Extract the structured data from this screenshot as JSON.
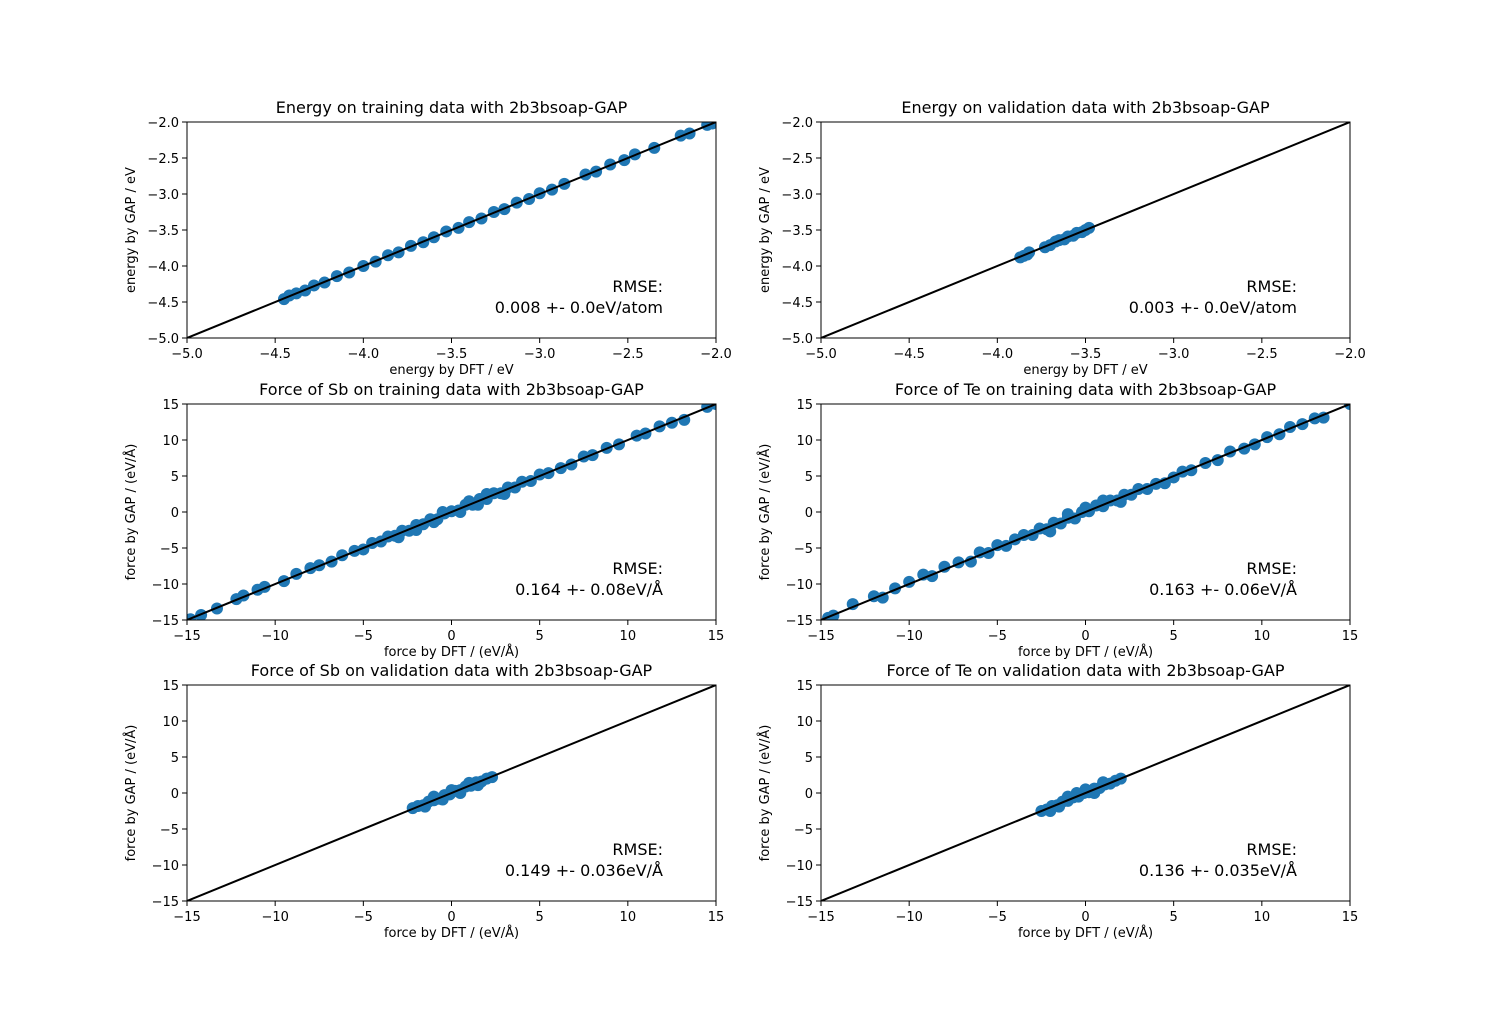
{
  "colors": {
    "points": "#1f77b4",
    "line": "#000000"
  },
  "chart_data": [
    {
      "type": "scatter",
      "title": "Energy on training data with 2b3bsoap-GAP",
      "xlabel": "energy by DFT / eV",
      "ylabel": "energy by GAP / eV",
      "xlim": [
        -5.0,
        -2.0
      ],
      "ylim": [
        -5.0,
        -2.0
      ],
      "xticks": [
        -5.0,
        -4.5,
        -4.0,
        -3.5,
        -3.0,
        -2.5,
        -2.0
      ],
      "yticks": [
        -5.0,
        -4.5,
        -4.0,
        -3.5,
        -3.0,
        -2.5,
        -2.0
      ],
      "xtick_labels": [
        "−5.0",
        "−4.5",
        "−4.0",
        "−3.5",
        "−3.0",
        "−2.5",
        "−2.0"
      ],
      "ytick_labels": [
        "−5.0",
        "−4.5",
        "−4.0",
        "−3.5",
        "−3.0",
        "−2.5",
        "−2.0"
      ],
      "rmse_label": "RMSE:",
      "rmse_value": "0.008 +- 0.0eV/atom",
      "identity_line": true,
      "points_x": [
        -4.45,
        -4.42,
        -4.38,
        -4.33,
        -4.28,
        -4.22,
        -4.15,
        -4.08,
        -4.0,
        -3.93,
        -3.86,
        -3.8,
        -3.73,
        -3.66,
        -3.6,
        -3.53,
        -3.46,
        -3.4,
        -3.33,
        -3.26,
        -3.2,
        -3.13,
        -3.06,
        -3.0,
        -2.93,
        -2.86,
        -2.74,
        -2.68,
        -2.6,
        -2.52,
        -2.46,
        -2.35,
        -2.2,
        -2.15,
        -2.05,
        -2.02
      ],
      "points_y": [
        -4.46,
        -4.41,
        -4.38,
        -4.34,
        -4.27,
        -4.23,
        -4.14,
        -4.09,
        -4.0,
        -3.94,
        -3.85,
        -3.81,
        -3.72,
        -3.67,
        -3.6,
        -3.52,
        -3.47,
        -3.39,
        -3.34,
        -3.25,
        -3.21,
        -3.12,
        -3.07,
        -2.99,
        -2.94,
        -2.86,
        -2.73,
        -2.69,
        -2.59,
        -2.53,
        -2.45,
        -2.36,
        -2.19,
        -2.16,
        -2.04,
        -2.02
      ]
    },
    {
      "type": "scatter",
      "title": "Energy on validation data with 2b3bsoap-GAP",
      "xlabel": "energy by DFT / eV",
      "ylabel": "energy by GAP / eV",
      "xlim": [
        -5.0,
        -2.0
      ],
      "ylim": [
        -5.0,
        -2.0
      ],
      "xticks": [
        -5.0,
        -4.5,
        -4.0,
        -3.5,
        -3.0,
        -2.5,
        -2.0
      ],
      "yticks": [
        -5.0,
        -4.5,
        -4.0,
        -3.5,
        -3.0,
        -2.5,
        -2.0
      ],
      "xtick_labels": [
        "−5.0",
        "−4.5",
        "−4.0",
        "−3.5",
        "−3.0",
        "−2.5",
        "−2.0"
      ],
      "ytick_labels": [
        "−5.0",
        "−4.5",
        "−4.0",
        "−3.5",
        "−3.0",
        "−2.5",
        "−2.0"
      ],
      "rmse_label": "RMSE:",
      "rmse_value": "0.003 +- 0.0eV/atom",
      "identity_line": true,
      "points_x": [
        -3.87,
        -3.85,
        -3.83,
        -3.82,
        -3.73,
        -3.7,
        -3.67,
        -3.65,
        -3.62,
        -3.6,
        -3.57,
        -3.55,
        -3.52,
        -3.5,
        -3.48
      ],
      "points_y": [
        -3.88,
        -3.86,
        -3.84,
        -3.81,
        -3.74,
        -3.71,
        -3.66,
        -3.64,
        -3.63,
        -3.59,
        -3.58,
        -3.54,
        -3.53,
        -3.5,
        -3.47
      ]
    },
    {
      "type": "scatter",
      "title": "Force of Sb on training data with 2b3bsoap-GAP",
      "xlabel": "force by DFT / (eV/Å)",
      "ylabel": "force by GAP / (eV/Å)",
      "xlim": [
        -15,
        15
      ],
      "ylim": [
        -15,
        15
      ],
      "xticks": [
        -15,
        -10,
        -5,
        0,
        5,
        10,
        15
      ],
      "yticks": [
        -15,
        -10,
        -5,
        0,
        5,
        10,
        15
      ],
      "xtick_labels": [
        "−15",
        "−10",
        "−5",
        "0",
        "5",
        "10",
        "15"
      ],
      "ytick_labels": [
        "−15",
        "−10",
        "−5",
        "0",
        "5",
        "10",
        "15"
      ],
      "rmse_label": "RMSE:",
      "rmse_value": "0.164 +- 0.08eV/Å",
      "identity_line": true,
      "points_x": [
        -14.8,
        -14.2,
        -13.3,
        -12.2,
        -11.8,
        -11.0,
        -10.6,
        -9.5,
        -8.8,
        -8.0,
        -7.5,
        -6.8,
        -6.2,
        -5.5,
        -5.0,
        -4.5,
        -4.0,
        -3.6,
        -3.2,
        -2.8,
        -2.4,
        -2.0,
        -1.6,
        -1.2,
        -0.8,
        -0.4,
        0.0,
        0.4,
        0.8,
        1.2,
        1.6,
        2.0,
        2.4,
        2.8,
        3.2,
        3.6,
        4.0,
        4.5,
        5.0,
        5.5,
        6.2,
        6.8,
        7.5,
        8.0,
        8.8,
        9.5,
        10.5,
        11.0,
        11.8,
        12.5,
        13.2,
        14.5,
        15.0,
        -3.0,
        -1.0,
        1.0,
        3.0,
        -2.0,
        2.0,
        0.5,
        -0.5,
        1.5
      ],
      "points_y": [
        -14.9,
        -14.3,
        -13.4,
        -12.1,
        -11.6,
        -10.8,
        -10.4,
        -9.6,
        -8.6,
        -7.8,
        -7.4,
        -6.9,
        -6.0,
        -5.4,
        -5.2,
        -4.3,
        -4.1,
        -3.4,
        -3.3,
        -2.6,
        -2.6,
        -1.8,
        -1.7,
        -1.0,
        -1.0,
        -0.2,
        0.1,
        0.2,
        1.0,
        1.0,
        1.8,
        1.8,
        2.6,
        2.6,
        3.4,
        3.4,
        4.2,
        4.3,
        5.2,
        5.4,
        6.1,
        6.6,
        7.7,
        7.9,
        8.9,
        9.4,
        10.6,
        10.9,
        11.9,
        12.4,
        12.8,
        14.6,
        15.0,
        -3.5,
        -1.4,
        1.5,
        2.5,
        -2.5,
        2.5,
        0.0,
        0.0,
        1.0
      ]
    },
    {
      "type": "scatter",
      "title": "Force of Te on training data with 2b3bsoap-GAP",
      "xlabel": "force by DFT / (eV/Å)",
      "ylabel": "force by GAP / (eV/Å)",
      "xlim": [
        -15,
        15
      ],
      "ylim": [
        -15,
        15
      ],
      "xticks": [
        -15,
        -10,
        -5,
        0,
        5,
        10,
        15
      ],
      "yticks": [
        -15,
        -10,
        -5,
        0,
        5,
        10,
        15
      ],
      "xtick_labels": [
        "−15",
        "−10",
        "−5",
        "0",
        "5",
        "10",
        "15"
      ],
      "ytick_labels": [
        "−15",
        "−10",
        "−5",
        "0",
        "5",
        "10",
        "15"
      ],
      "rmse_label": "RMSE:",
      "rmse_value": "0.163 +- 0.06eV/Å",
      "identity_line": true,
      "points_x": [
        -14.6,
        -14.3,
        -13.2,
        -12.0,
        -11.5,
        -10.8,
        -10.0,
        -9.2,
        -8.7,
        -8.0,
        -7.2,
        -6.5,
        -6.0,
        -5.5,
        -5.0,
        -4.5,
        -4.0,
        -3.5,
        -3.0,
        -2.6,
        -2.2,
        -1.8,
        -1.4,
        -1.0,
        -0.6,
        -0.2,
        0.2,
        0.6,
        1.0,
        1.4,
        1.8,
        2.2,
        2.6,
        3.0,
        3.5,
        4.0,
        4.5,
        5.0,
        5.5,
        6.0,
        6.8,
        7.5,
        8.2,
        9.0,
        9.6,
        10.3,
        11.0,
        11.6,
        12.3,
        13.0,
        13.5,
        15.0,
        -2.0,
        0.0,
        2.0,
        -1.0,
        1.0
      ],
      "points_y": [
        -14.7,
        -14.4,
        -12.8,
        -11.7,
        -11.9,
        -10.6,
        -9.7,
        -8.7,
        -8.9,
        -7.6,
        -7.0,
        -6.9,
        -5.6,
        -5.7,
        -4.6,
        -4.7,
        -3.8,
        -3.2,
        -3.2,
        -2.3,
        -2.4,
        -1.5,
        -1.6,
        -0.8,
        -0.9,
        0.0,
        0.1,
        0.9,
        0.8,
        1.6,
        1.6,
        2.4,
        2.4,
        3.2,
        3.2,
        3.9,
        4.0,
        4.8,
        5.6,
        5.8,
        6.8,
        7.2,
        8.4,
        8.8,
        9.4,
        10.4,
        10.8,
        11.8,
        12.2,
        13.0,
        13.1,
        15.0,
        -2.7,
        0.6,
        1.4,
        -0.3,
        1.6
      ]
    },
    {
      "type": "scatter",
      "title": "Force of Sb on validation data with 2b3bsoap-GAP",
      "xlabel": "force by DFT / (eV/Å)",
      "ylabel": "force by GAP / (eV/Å)",
      "xlim": [
        -15,
        15
      ],
      "ylim": [
        -15,
        15
      ],
      "xticks": [
        -15,
        -10,
        -5,
        0,
        5,
        10,
        15
      ],
      "yticks": [
        -15,
        -10,
        -5,
        0,
        5,
        10,
        15
      ],
      "xtick_labels": [
        "−15",
        "−10",
        "−5",
        "0",
        "5",
        "10",
        "15"
      ],
      "ytick_labels": [
        "−15",
        "−10",
        "−5",
        "0",
        "5",
        "10",
        "15"
      ],
      "rmse_label": "RMSE:",
      "rmse_value": "0.149 +- 0.036eV/Å",
      "identity_line": true,
      "points_x": [
        -2.2,
        -1.9,
        -1.6,
        -1.3,
        -1.0,
        -0.7,
        -0.4,
        -0.1,
        0.2,
        0.5,
        0.8,
        1.1,
        1.4,
        1.7,
        2.0,
        2.3,
        -1.5,
        -0.5,
        0.5,
        1.5,
        -1.0,
        0.0,
        1.0
      ],
      "points_y": [
        -2.1,
        -1.8,
        -1.7,
        -1.2,
        -1.0,
        -0.8,
        -0.3,
        -0.2,
        0.3,
        0.4,
        0.9,
        1.0,
        1.5,
        1.6,
        2.0,
        2.2,
        -1.9,
        -0.9,
        0.0,
        1.1,
        -0.5,
        0.4,
        1.4
      ]
    },
    {
      "type": "scatter",
      "title": "Force of Te on validation data with 2b3bsoap-GAP",
      "xlabel": "force by DFT / (eV/Å)",
      "ylabel": "force by GAP / (eV/Å)",
      "xlim": [
        -15,
        15
      ],
      "ylim": [
        -15,
        15
      ],
      "xticks": [
        -15,
        -10,
        -5,
        0,
        5,
        10,
        15
      ],
      "yticks": [
        -15,
        -10,
        -5,
        0,
        5,
        10,
        15
      ],
      "xtick_labels": [
        "−15",
        "−10",
        "−5",
        "0",
        "5",
        "10",
        "15"
      ],
      "ytick_labels": [
        "−15",
        "−10",
        "−5",
        "0",
        "5",
        "10",
        "15"
      ],
      "rmse_label": "RMSE:",
      "rmse_value": "0.136 +- 0.035eV/Å",
      "identity_line": true,
      "points_x": [
        -2.5,
        -2.2,
        -1.9,
        -1.6,
        -1.3,
        -1.0,
        -0.7,
        -0.4,
        -0.1,
        0.2,
        0.5,
        0.8,
        1.1,
        1.4,
        1.7,
        2.0,
        -2.0,
        -1.0,
        0.0,
        1.0,
        -0.5,
        0.5,
        -1.5
      ],
      "points_y": [
        -2.5,
        -2.3,
        -1.8,
        -1.7,
        -1.2,
        -1.1,
        -0.6,
        -0.5,
        0.0,
        0.1,
        0.6,
        0.7,
        1.2,
        1.3,
        1.7,
        2.0,
        -2.5,
        -0.5,
        0.5,
        1.5,
        0.0,
        0.0,
        -1.9
      ]
    }
  ]
}
